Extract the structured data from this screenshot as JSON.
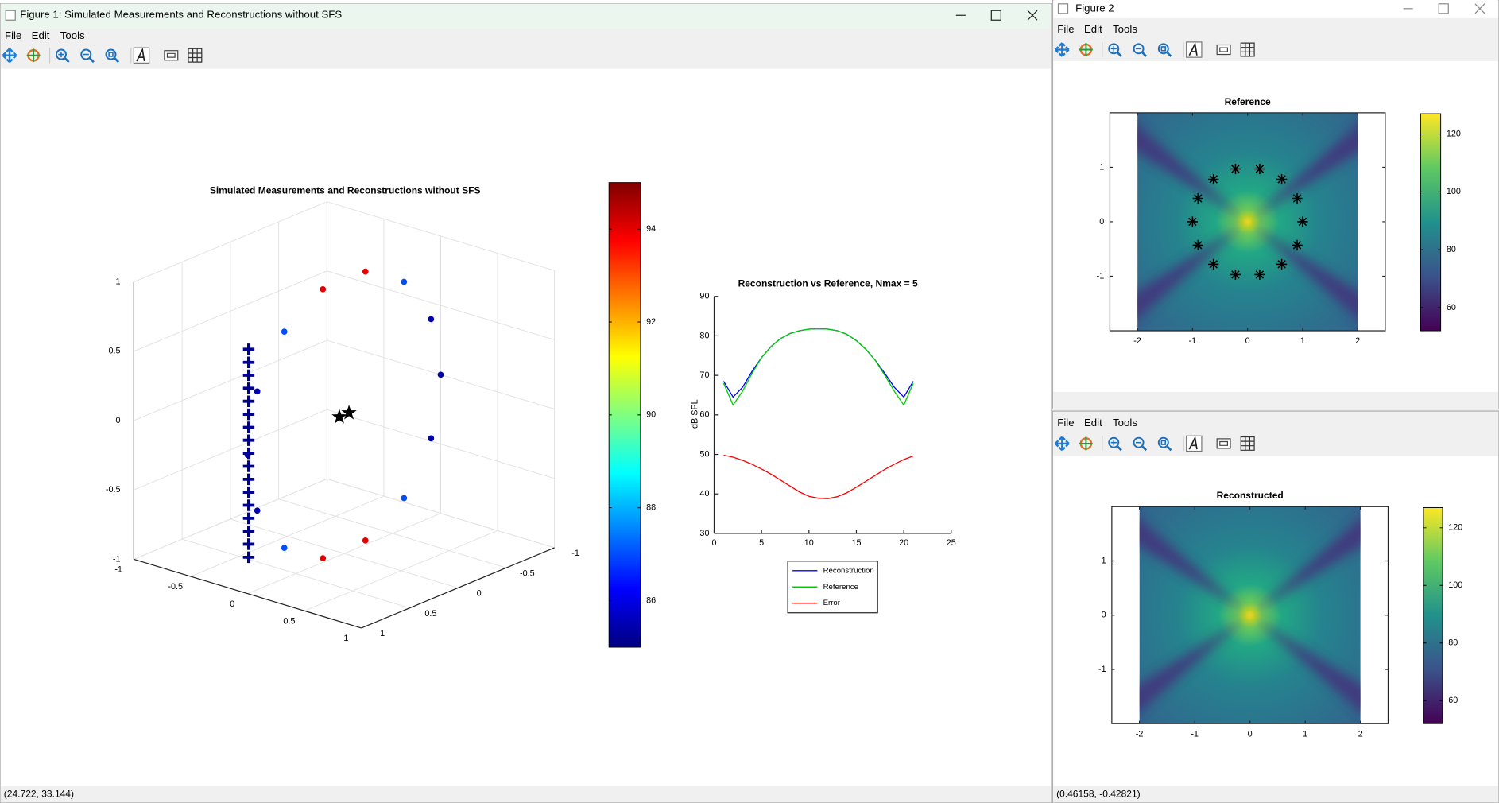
{
  "windows": [
    {
      "title": "Figure 1: Simulated Measurements and Reconstructions without SFS",
      "menu": [
        "File",
        "Edit",
        "Tools"
      ],
      "status": "(24.722, 33.144)"
    },
    {
      "title": "Figure 2",
      "menu": [
        "File",
        "Edit",
        "Tools"
      ]
    },
    {
      "menu": [
        "File",
        "Edit",
        "Tools"
      ],
      "status": "(0.46158, -0.42821)"
    }
  ],
  "chart_data": [
    {
      "type": "scatter3d",
      "title": "Simulated Measurements and Reconstructions without SFS",
      "xlim": [
        -1,
        1
      ],
      "ylim": [
        -1,
        1
      ],
      "zlim": [
        -1,
        1
      ],
      "xticks": [
        -1,
        -0.5,
        0,
        0.5,
        1
      ],
      "yticks": [
        -1,
        -0.5,
        0,
        0.5,
        1
      ],
      "zticks": [
        -1,
        -0.5,
        0,
        0.5,
        1
      ],
      "grid": true,
      "colormap": "jet",
      "clim": [
        85,
        95
      ],
      "cticks": [
        86,
        88,
        90,
        92,
        94
      ],
      "series": [
        {
          "marker": "plus",
          "color": "#00008f",
          "x": [
            -0.44,
            -0.44,
            -0.44,
            -0.44,
            -0.44,
            -0.44,
            -0.44,
            -0.44,
            -0.44,
            -0.44,
            -0.44,
            -0.44,
            -0.44,
            -0.44,
            -0.44,
            -0.44,
            -0.44
          ],
          "y": [
            0.47,
            0.47,
            0.47,
            0.47,
            0.47,
            0.47,
            0.47,
            0.47,
            0.47,
            0.47,
            0.47,
            0.47,
            0.47,
            0.47,
            0.47,
            0.47,
            0.47
          ],
          "z": [
            -1,
            -0.906,
            -0.813,
            -0.719,
            -0.625,
            -0.531,
            -0.438,
            -0.344,
            -0.25,
            -0.156,
            -0.063,
            0.031,
            0.125,
            0.219,
            0.313,
            0.406,
            0.5
          ]
        },
        {
          "marker": "dot",
          "x": [
            0,
            0,
            0,
            0,
            0,
            0,
            0,
            0,
            0,
            0,
            0,
            0,
            0,
            0
          ],
          "y": [
            -0.22,
            -0.62,
            -0.9,
            -1,
            -0.9,
            -0.62,
            -0.22,
            0.22,
            0.62,
            0.9,
            1,
            0.9,
            0.62,
            0.22
          ],
          "z": [
            0.97,
            0.78,
            0.43,
            0,
            -0.43,
            -0.78,
            -0.97,
            -0.97,
            -0.78,
            -0.43,
            0,
            0.43,
            0.78,
            0.97
          ],
          "c": [
            94,
            87,
            85.5,
            85.3,
            85.5,
            87,
            94,
            94,
            87,
            85.5,
            85.3,
            85.5,
            87,
            94
          ]
        },
        {
          "marker": "star",
          "color": "#000000",
          "x": [
            0,
            0
          ],
          "y": [
            0.05,
            -0.05
          ],
          "z": [
            0,
            0
          ]
        }
      ]
    },
    {
      "type": "line",
      "title": "Reconstruction vs Reference, Nmax = 5",
      "ylabel": "dB SPL",
      "xlim": [
        0,
        25
      ],
      "ylim": [
        30,
        90
      ],
      "xticks": [
        0,
        5,
        10,
        15,
        20,
        25
      ],
      "yticks": [
        30,
        40,
        50,
        60,
        70,
        80,
        90
      ],
      "legend": "bottom",
      "x": [
        1,
        2,
        3,
        4,
        5,
        6,
        7,
        8,
        9,
        10,
        11,
        12,
        13,
        14,
        15,
        16,
        17,
        18,
        19,
        20,
        21
      ],
      "series": [
        {
          "name": "Reconstruction",
          "color": "#0000ff",
          "values": [
            68.5,
            64.5,
            67,
            71,
            74.5,
            77.3,
            79.3,
            80.6,
            81.3,
            81.7,
            81.8,
            81.7,
            81.3,
            80.4,
            78.8,
            76.6,
            73.8,
            70.5,
            67,
            64.5,
            68.5
          ]
        },
        {
          "name": "Reference",
          "color": "#00cc00",
          "values": [
            68,
            62.5,
            66,
            70.5,
            74.5,
            77.3,
            79.3,
            80.6,
            81.3,
            81.7,
            81.8,
            81.7,
            81.3,
            80.4,
            78.8,
            76.6,
            73.8,
            70,
            66,
            62.5,
            68
          ]
        },
        {
          "name": "Error",
          "color": "#ff0000",
          "values": [
            49.8,
            49.3,
            48.5,
            47.5,
            46.3,
            45,
            43.5,
            42,
            40.5,
            39.4,
            38.9,
            38.8,
            39.3,
            40.3,
            41.7,
            43.2,
            44.7,
            46.2,
            47.5,
            48.7,
            49.6
          ]
        }
      ]
    },
    {
      "type": "heatmap",
      "title": "Reference",
      "xlim": [
        -2.5,
        2.5
      ],
      "ylim": [
        -2,
        2
      ],
      "xticks": [
        -2,
        -1,
        0,
        1,
        2
      ],
      "yticks": [
        -1,
        0,
        1
      ],
      "colormap": "viridis",
      "clim": [
        52,
        127
      ],
      "cticks": [
        60,
        80,
        100,
        120
      ],
      "markers": {
        "marker": "asterisk",
        "color": "#000000",
        "x": [
          0.22,
          0.62,
          0.9,
          1,
          0.9,
          0.62,
          0.22,
          -0.22,
          -0.62,
          -0.9,
          -1,
          -0.9,
          -0.62,
          -0.22
        ],
        "y": [
          0.97,
          0.78,
          0.43,
          0,
          -0.43,
          -0.78,
          -0.97,
          -0.97,
          -0.78,
          -0.43,
          0,
          0.43,
          0.78,
          0.97
        ]
      }
    },
    {
      "type": "heatmap",
      "title": "Reconstructed",
      "xlim": [
        -2.5,
        2.5
      ],
      "ylim": [
        -2,
        2
      ],
      "xticks": [
        -2,
        -1,
        0,
        1,
        2
      ],
      "yticks": [
        -1,
        0,
        1
      ],
      "colormap": "viridis",
      "clim": [
        52,
        127
      ],
      "cticks": [
        60,
        80,
        100,
        120
      ]
    }
  ]
}
